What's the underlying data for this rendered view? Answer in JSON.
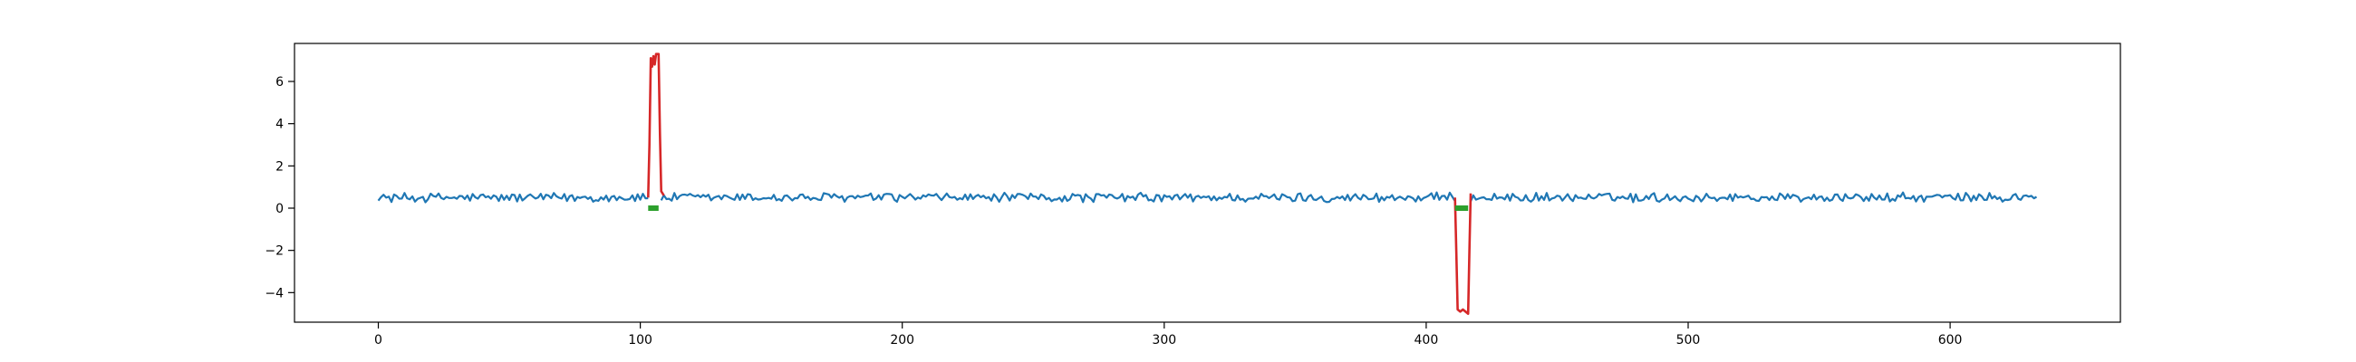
{
  "chart_data": {
    "type": "line",
    "title": "",
    "xlabel": "",
    "ylabel": "",
    "xlim": [
      -32,
      665
    ],
    "ylim": [
      -5.4,
      7.8
    ],
    "x_ticks": [
      0,
      100,
      200,
      300,
      400,
      500,
      600
    ],
    "y_ticks": [
      -4,
      -2,
      0,
      2,
      4,
      6
    ],
    "x_tick_labels": [
      "0",
      "100",
      "200",
      "300",
      "400",
      "500",
      "600"
    ],
    "y_tick_labels": [
      "−4",
      "−2",
      "0",
      "2",
      "4",
      "6"
    ],
    "grid": false,
    "legend": "none",
    "series": [
      {
        "color": "#1f77b4",
        "role": "signal",
        "x_start": 0,
        "x_end": 633,
        "baseline": 0.5,
        "noise_amplitude": 0.25,
        "gap_segments": [
          [
            103,
            108
          ],
          [
            411,
            417
          ]
        ]
      },
      {
        "color": "#d62728",
        "role": "anomaly_positive",
        "x": [
          103,
          103.5,
          104,
          104.5,
          105,
          105.5,
          106,
          106.5,
          107,
          107.5,
          108,
          108.5,
          109
        ],
        "values": [
          0.5,
          3.0,
          7.1,
          6.7,
          7.2,
          6.8,
          7.3,
          7.3,
          7.3,
          3.5,
          0.8,
          0.7,
          0.6
        ]
      },
      {
        "color": "#d62728",
        "role": "anomaly_negative",
        "x": [
          411,
          411.5,
          412,
          413,
          414,
          415,
          416,
          416.5,
          417
        ],
        "values": [
          0.5,
          -2.0,
          -4.8,
          -4.9,
          -4.8,
          -4.9,
          -5.0,
          -2.0,
          0.7
        ]
      },
      {
        "color": "#2ca02c",
        "role": "marker_segment",
        "segments": [
          {
            "x": [
              103,
              107
            ],
            "y": 0.0
          },
          {
            "x": [
              411,
              416
            ],
            "y": 0.0
          }
        ]
      }
    ]
  }
}
